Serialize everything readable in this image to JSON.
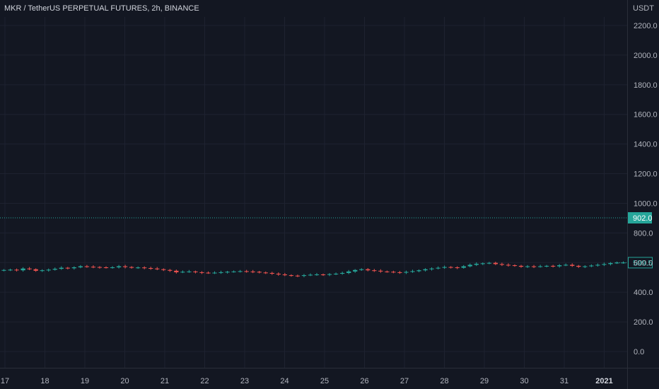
{
  "header": {
    "title": "MKR / TetherUS PERPETUAL FUTURES, 2h, BINANCE",
    "currency": "USDT"
  },
  "colors": {
    "background": "#131722",
    "grid": "#1e2230",
    "up": "#26a69a",
    "down": "#ef5350",
    "text": "#b2b5be",
    "dotted_line": "#26a69a"
  },
  "chart_data": {
    "type": "candlestick",
    "symbol": "MKR / TetherUS PERPETUAL FUTURES",
    "interval": "2h",
    "exchange": "BINANCE",
    "y_unit": "USDT",
    "y_ticks": [
      "2200.0",
      "2000.0",
      "1800.0",
      "1600.0",
      "1400.0",
      "1200.0",
      "1000.0",
      "800.0",
      "600.0",
      "400.0",
      "200.0",
      "0.0"
    ],
    "ylim": [
      -80,
      2300
    ],
    "x_ticks": [
      "17",
      "18",
      "19",
      "20",
      "21",
      "22",
      "23",
      "24",
      "25",
      "26",
      "27",
      "28",
      "29",
      "30",
      "31",
      "2021"
    ],
    "x_ticks_bold": [
      "2021"
    ],
    "series": [
      {
        "close": [
          550,
          552,
          548,
          560,
          555,
          545,
          548,
          552,
          558,
          565,
          562,
          568,
          575,
          572,
          570,
          568,
          566,
          568,
          575,
          570,
          565,
          567,
          563,
          560,
          555,
          550,
          545,
          535,
          538,
          540,
          535,
          532,
          530,
          532,
          535,
          538,
          540,
          542,
          540,
          538,
          533,
          530,
          525,
          520,
          515,
          512,
          510,
          515,
          518,
          520,
          518,
          522,
          525,
          530,
          540,
          550,
          555,
          548,
          545,
          540,
          538,
          535,
          532,
          537,
          542,
          548,
          555,
          560,
          565,
          570,
          568,
          565,
          575,
          585,
          592,
          595,
          598,
          590,
          585,
          582,
          578,
          572,
          575,
          572,
          575,
          578,
          575,
          582,
          585,
          578,
          572,
          575,
          580,
          585,
          590,
          597,
          599.5,
          600
        ]
      }
    ],
    "current_price": "599.5",
    "marked_price": "902.0",
    "marked_price_value": 902
  }
}
